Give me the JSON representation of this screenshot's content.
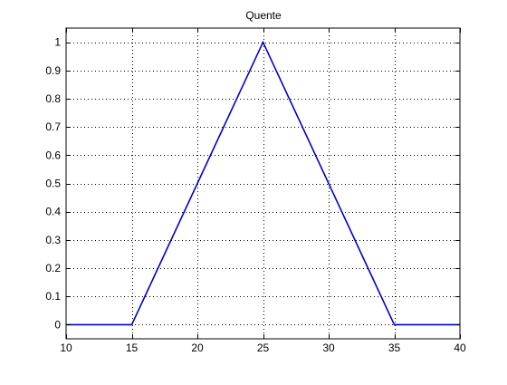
{
  "chart_data": {
    "type": "line",
    "title": "Quente",
    "xlabel": "",
    "ylabel": "",
    "xlim": [
      10,
      40
    ],
    "ylim": [
      -0.05,
      1.05
    ],
    "xticks": [
      10,
      15,
      20,
      25,
      30,
      35,
      40
    ],
    "yticks": [
      0,
      0.1,
      0.2,
      0.3,
      0.4,
      0.5,
      0.6,
      0.7,
      0.8,
      0.9,
      1
    ],
    "grid": true,
    "series": [
      {
        "color": "#0000cc",
        "x": [
          10,
          15,
          25,
          35,
          40
        ],
        "y": [
          0,
          0,
          1,
          0,
          0
        ]
      }
    ]
  }
}
